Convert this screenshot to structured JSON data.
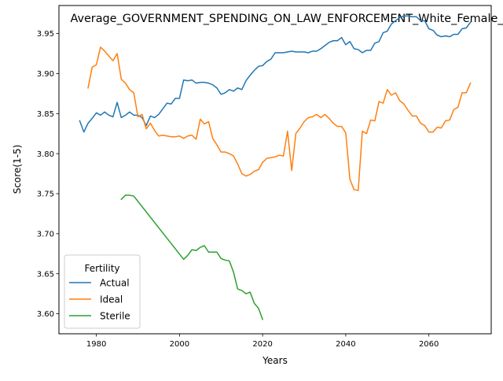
{
  "chart_data": {
    "type": "line",
    "title": "Average_GOVERNMENT_SPENDING_ON_LAW_ENFORCEMENT_White_Female_",
    "xlabel": "Years",
    "ylabel": "Score(1-5)",
    "xlim": [
      1971,
      2075
    ],
    "ylim": [
      3.575,
      3.985
    ],
    "xticks": [
      1980,
      2000,
      2020,
      2040,
      2060
    ],
    "xtick_labels": [
      "1980",
      "2000",
      "2020",
      "2040",
      "2060"
    ],
    "yticks": [
      3.6,
      3.65,
      3.7,
      3.75,
      3.8,
      3.85,
      3.9,
      3.95
    ],
    "ytick_labels": [
      "3.60",
      "3.65",
      "3.70",
      "3.75",
      "3.80",
      "3.85",
      "3.90",
      "3.95"
    ],
    "grid": false,
    "legend": {
      "title": "Fertility",
      "placement": "lower-left"
    },
    "series": [
      {
        "name": "Actual",
        "color": "#1f77b4",
        "x": [
          1976,
          1977,
          1978,
          1979,
          1980,
          1981,
          1982,
          1983,
          1984,
          1985,
          1986,
          1987,
          1988,
          1989,
          1990,
          1991,
          1992,
          1993,
          1994,
          1995,
          1996,
          1997,
          1998,
          1999,
          2000,
          2001,
          2002,
          2003,
          2004,
          2005,
          2006,
          2007,
          2008,
          2009,
          2010,
          2011,
          2012,
          2013,
          2014,
          2015,
          2016,
          2017,
          2018,
          2019,
          2020,
          2021,
          2022,
          2023,
          2024,
          2025,
          2026,
          2027,
          2028,
          2029,
          2030,
          2031,
          2032,
          2033,
          2034,
          2035,
          2036,
          2037,
          2038,
          2039,
          2040,
          2041,
          2042,
          2043,
          2044,
          2045,
          2046,
          2047,
          2048,
          2049,
          2050,
          2051,
          2052,
          2053,
          2054,
          2055,
          2056,
          2057,
          2058,
          2059,
          2060,
          2061,
          2062,
          2063,
          2064,
          2065,
          2066,
          2067,
          2068,
          2069,
          2070
        ],
        "values": [
          3.841,
          3.827,
          3.838,
          3.844,
          3.851,
          3.848,
          3.852,
          3.848,
          3.846,
          3.864,
          3.845,
          3.848,
          3.852,
          3.848,
          3.848,
          3.845,
          3.835,
          3.847,
          3.845,
          3.849,
          3.856,
          3.863,
          3.862,
          3.869,
          3.869,
          3.892,
          3.891,
          3.892,
          3.888,
          3.889,
          3.889,
          3.888,
          3.886,
          3.882,
          3.874,
          3.876,
          3.88,
          3.878,
          3.882,
          3.88,
          3.891,
          3.898,
          3.904,
          3.909,
          3.91,
          3.915,
          3.918,
          3.926,
          3.926,
          3.926,
          3.927,
          3.928,
          3.927,
          3.927,
          3.927,
          3.926,
          3.928,
          3.928,
          3.931,
          3.935,
          3.939,
          3.941,
          3.941,
          3.945,
          3.936,
          3.94,
          3.931,
          3.93,
          3.926,
          3.929,
          3.929,
          3.938,
          3.94,
          3.951,
          3.953,
          3.962,
          3.966,
          3.97,
          3.972,
          3.972,
          3.971,
          3.971,
          3.966,
          3.966,
          3.956,
          3.954,
          3.948,
          3.946,
          3.947,
          3.946,
          3.949,
          3.949,
          3.956,
          3.957,
          3.964
        ]
      },
      {
        "name": "Ideal",
        "color": "#ff7f0e",
        "x": [
          1978,
          1979,
          1980,
          1981,
          1982,
          1983,
          1984,
          1985,
          1986,
          1987,
          1988,
          1989,
          1990,
          1991,
          1992,
          1993,
          1994,
          1995,
          1996,
          1997,
          1998,
          1999,
          2000,
          2001,
          2002,
          2003,
          2004,
          2005,
          2006,
          2007,
          2008,
          2009,
          2010,
          2011,
          2012,
          2013,
          2014,
          2015,
          2016,
          2017,
          2018,
          2019,
          2020,
          2021,
          2022,
          2023,
          2024,
          2025,
          2026,
          2027,
          2028,
          2029,
          2030,
          2031,
          2032,
          2033,
          2034,
          2035,
          2036,
          2037,
          2038,
          2039,
          2040,
          2041,
          2042,
          2043,
          2044,
          2045,
          2046,
          2047,
          2048,
          2049,
          2050,
          2051,
          2052,
          2053,
          2054,
          2055,
          2056,
          2057,
          2058,
          2059,
          2060,
          2061,
          2062,
          2063,
          2064,
          2065,
          2066,
          2067,
          2068,
          2069,
          2070
        ],
        "values": [
          3.882,
          3.908,
          3.911,
          3.933,
          3.928,
          3.922,
          3.916,
          3.925,
          3.893,
          3.888,
          3.88,
          3.876,
          3.846,
          3.849,
          3.831,
          3.838,
          3.829,
          3.822,
          3.823,
          3.822,
          3.821,
          3.821,
          3.822,
          3.819,
          3.822,
          3.823,
          3.818,
          3.843,
          3.837,
          3.84,
          3.819,
          3.811,
          3.802,
          3.802,
          3.8,
          3.797,
          3.787,
          3.775,
          3.772,
          3.774,
          3.778,
          3.78,
          3.789,
          3.794,
          3.795,
          3.796,
          3.798,
          3.797,
          3.828,
          3.779,
          3.825,
          3.832,
          3.84,
          3.845,
          3.846,
          3.849,
          3.845,
          3.849,
          3.844,
          3.838,
          3.834,
          3.834,
          3.826,
          3.768,
          3.755,
          3.754,
          3.828,
          3.825,
          3.842,
          3.841,
          3.865,
          3.863,
          3.88,
          3.873,
          3.876,
          3.866,
          3.862,
          3.854,
          3.847,
          3.847,
          3.838,
          3.835,
          3.827,
          3.827,
          3.833,
          3.832,
          3.841,
          3.842,
          3.855,
          3.858,
          3.876,
          3.876,
          3.888
        ]
      },
      {
        "name": "Sterile",
        "color": "#2ca02c",
        "x": [
          1986,
          1987,
          1988,
          1989,
          2001,
          2002,
          2003,
          2004,
          2005,
          2006,
          2007,
          2008,
          2009,
          2010,
          2011,
          2012,
          2013,
          2014,
          2015,
          2016,
          2017,
          2018,
          2019,
          2020
        ],
        "values": [
          3.743,
          3.748,
          3.748,
          3.747,
          3.668,
          3.673,
          3.68,
          3.679,
          3.683,
          3.685,
          3.677,
          3.677,
          3.677,
          3.669,
          3.667,
          3.666,
          3.652,
          3.631,
          3.629,
          3.625,
          3.627,
          3.613,
          3.607,
          3.593
        ]
      }
    ]
  }
}
